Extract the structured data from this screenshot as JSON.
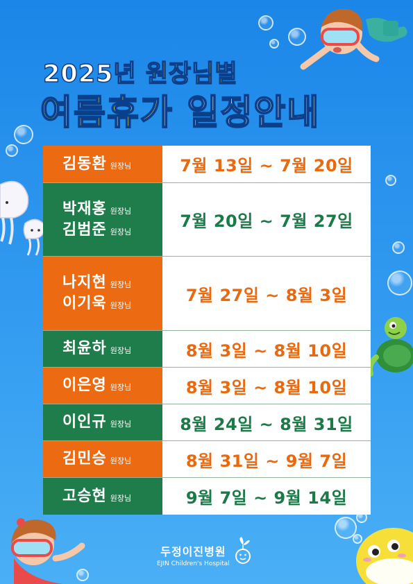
{
  "title": {
    "year": "2025년",
    "subtitle": "원장님별",
    "main_highlight": "여름휴가",
    "main_rest": "일정안내"
  },
  "title_suffix": "원장님",
  "schedule": [
    {
      "doctors": [
        "김동환"
      ],
      "dates": "7월 13일 ~ 7월 20일",
      "name_color": "orange",
      "date_color": "orange"
    },
    {
      "doctors": [
        "박재홍",
        "김범준"
      ],
      "dates": "7월 20일 ~ 7월 27일",
      "name_color": "green",
      "date_color": "green"
    },
    {
      "doctors": [
        "나지현",
        "이기욱"
      ],
      "dates": "7월 27일 ~ 8월 3일",
      "name_color": "orange",
      "date_color": "orange"
    },
    {
      "doctors": [
        "최윤하"
      ],
      "dates": "8월 3일 ~ 8월 10일",
      "name_color": "green",
      "date_color": "orange"
    },
    {
      "doctors": [
        "이은영"
      ],
      "dates": "8월 3일 ~ 8월 10일",
      "name_color": "orange",
      "date_color": "orange"
    },
    {
      "doctors": [
        "이인규"
      ],
      "dates": "8월 24일 ~ 8월 31일",
      "name_color": "green",
      "date_color": "green"
    },
    {
      "doctors": [
        "김민승"
      ],
      "dates": "8월 31일 ~ 9월 7일",
      "name_color": "orange",
      "date_color": "orange"
    },
    {
      "doctors": [
        "고승현"
      ],
      "dates": "9월 7일 ~ 9월 14일",
      "name_color": "green",
      "date_color": "green"
    }
  ],
  "logo": {
    "korean": "두정이진병원",
    "english": "EJIN Children's Hospital"
  },
  "colors": {
    "orange": "#ec6b12",
    "green": "#1f7d4b",
    "background": "#2e98ef",
    "title_yellow": "#ffe24a"
  },
  "decorations": [
    "swimming-boy-illustration",
    "swimming-girl-illustration",
    "jellyfish-illustration",
    "turtle-illustration",
    "yellow-fish-illustration",
    "bubbles"
  ]
}
